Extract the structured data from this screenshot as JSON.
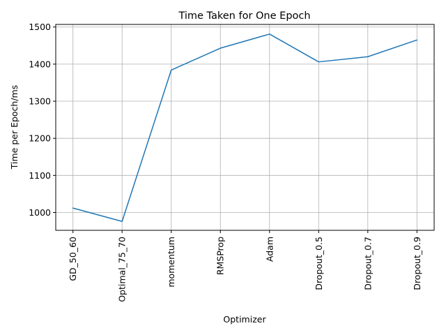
{
  "chart_data": {
    "type": "line",
    "title": "Time Taken for One Epoch",
    "xlabel": "Optimizer",
    "ylabel": "Time per Epoch/ms",
    "categories": [
      "GD_50_60",
      "Optimal_75_70",
      "momentum",
      "RMSProp",
      "Adam",
      "Dropout_0.5",
      "Dropout_0.7",
      "Dropout_0.9"
    ],
    "values": [
      1012,
      976,
      1384,
      1443,
      1481,
      1406,
      1420,
      1465
    ],
    "ylim": [
      952,
      1507
    ],
    "yticks": [
      "1000",
      "1100",
      "1200",
      "1300",
      "1400",
      "1500"
    ],
    "grid": true,
    "colors": {
      "line": "#1f77b4",
      "grid": "#b0b0b0",
      "axis": "#000000"
    }
  }
}
